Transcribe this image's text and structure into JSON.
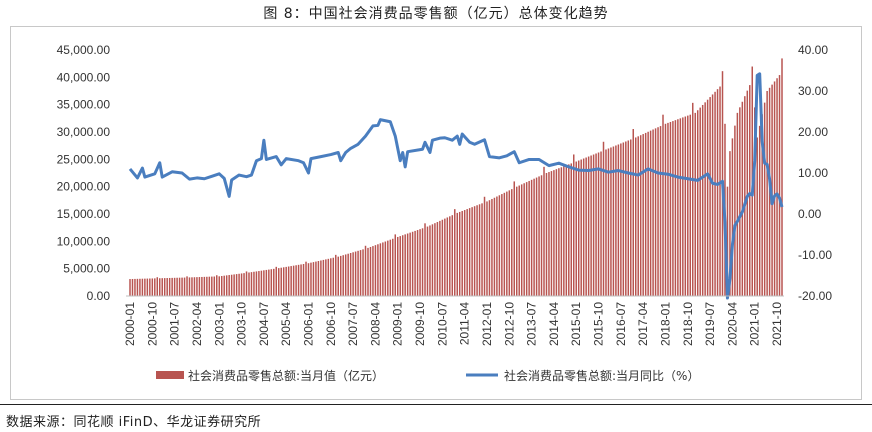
{
  "title": "图 8：中国社会消费品零售额（亿元）总体变化趋势",
  "source": "数据来源：同花顺 iFinD、华龙证券研究所",
  "chart_data": {
    "type": "bar",
    "title": "图 8：中国社会消费品零售额（亿元）总体变化趋势",
    "x_tick_labels": [
      "2000-01",
      "2000-10",
      "2001-07",
      "2002-04",
      "2003-01",
      "2003-10",
      "2004-07",
      "2005-04",
      "2006-01",
      "2006-10",
      "2007-07",
      "2008-04",
      "2009-01",
      "2009-10",
      "2010-07",
      "2011-04",
      "2012-01",
      "2012-10",
      "2013-07",
      "2014-04",
      "2015-01",
      "2015-10",
      "2016-07",
      "2017-04",
      "2018-01",
      "2018-10",
      "2019-07",
      "2020-04",
      "2021-01",
      "2021-10"
    ],
    "y_left_ticks": [
      "45,000.00",
      "40,000.00",
      "35,000.00",
      "30,000.00",
      "25,000.00",
      "20,000.00",
      "15,000.00",
      "10,000.00",
      "5,000.00",
      "0.00"
    ],
    "y_left_range": [
      0,
      45000
    ],
    "y_right_ticks": [
      "40.00",
      "30.00",
      "20.00",
      "10.00",
      "0.00",
      "-10.00",
      "-20.00"
    ],
    "y_right_range": [
      -20,
      40
    ],
    "colors": {
      "bar": "#b85450",
      "line": "#4a7ebf"
    },
    "series": [
      {
        "name": "社会消费品零售总额:当月值（亿元）",
        "type": "bar",
        "axis": "left",
        "anchors": [
          [
            "2000-01",
            3100
          ],
          [
            "2002-01",
            3400
          ],
          [
            "2003-01",
            3600
          ],
          [
            "2004-01",
            4300
          ],
          [
            "2005-01",
            5100
          ],
          [
            "2006-01",
            6000
          ],
          [
            "2007-01",
            7200
          ],
          [
            "2008-01",
            8800
          ],
          [
            "2009-01",
            10800
          ],
          [
            "2010-01",
            12700
          ],
          [
            "2011-01",
            15200
          ],
          [
            "2012-01",
            17300
          ],
          [
            "2013-01",
            20000
          ],
          [
            "2014-01",
            22500
          ],
          [
            "2015-01",
            24600
          ],
          [
            "2016-01",
            26800
          ],
          [
            "2017-01",
            29000
          ],
          [
            "2018-01",
            31500
          ],
          [
            "2019-01",
            33500
          ],
          [
            "2019-12",
            38800
          ],
          [
            "2020-01",
            31500
          ],
          [
            "2020-02",
            20000
          ],
          [
            "2020-03",
            26500
          ],
          [
            "2020-06",
            33500
          ],
          [
            "2020-12",
            39600
          ],
          [
            "2021-01",
            34500
          ],
          [
            "2021-02",
            29000
          ],
          [
            "2021-06",
            37500
          ],
          [
            "2021-12",
            41000
          ]
        ]
      },
      {
        "name": "社会消费品零售总额:当月同比（%）",
        "type": "line",
        "axis": "right",
        "points": [
          [
            "2000-01",
            11.0
          ],
          [
            "2000-04",
            8.8
          ],
          [
            "2000-06",
            11.2
          ],
          [
            "2000-07",
            9.0
          ],
          [
            "2000-11",
            9.8
          ],
          [
            "2001-01",
            12.5
          ],
          [
            "2001-02",
            9.0
          ],
          [
            "2001-06",
            10.3
          ],
          [
            "2001-10",
            10.0
          ],
          [
            "2002-01",
            8.5
          ],
          [
            "2002-04",
            8.8
          ],
          [
            "2002-07",
            8.6
          ],
          [
            "2002-10",
            9.2
          ],
          [
            "2003-01",
            9.8
          ],
          [
            "2003-03",
            8.7
          ],
          [
            "2003-05",
            4.3
          ],
          [
            "2003-06",
            8.3
          ],
          [
            "2003-09",
            9.5
          ],
          [
            "2003-12",
            9.1
          ],
          [
            "2004-02",
            9.5
          ],
          [
            "2004-04",
            13.0
          ],
          [
            "2004-06",
            13.5
          ],
          [
            "2004-07",
            18.0
          ],
          [
            "2004-08",
            13.3
          ],
          [
            "2004-12",
            14.0
          ],
          [
            "2005-02",
            12.0
          ],
          [
            "2005-04",
            13.5
          ],
          [
            "2005-09",
            13.0
          ],
          [
            "2005-11",
            12.5
          ],
          [
            "2006-01",
            10.0
          ],
          [
            "2006-02",
            13.5
          ],
          [
            "2006-06",
            14.0
          ],
          [
            "2006-10",
            14.5
          ],
          [
            "2007-01",
            15.0
          ],
          [
            "2007-02",
            13.0
          ],
          [
            "2007-04",
            15.0
          ],
          [
            "2007-06",
            16.0
          ],
          [
            "2007-09",
            17.0
          ],
          [
            "2007-12",
            19.0
          ],
          [
            "2008-03",
            21.5
          ],
          [
            "2008-05",
            21.6
          ],
          [
            "2008-06",
            23.0
          ],
          [
            "2008-10",
            22.5
          ],
          [
            "2008-12",
            19.0
          ],
          [
            "2009-02",
            13.0
          ],
          [
            "2009-03",
            15.0
          ],
          [
            "2009-04",
            11.5
          ],
          [
            "2009-05",
            15.2
          ],
          [
            "2009-11",
            15.8
          ],
          [
            "2009-12",
            17.5
          ],
          [
            "2010-02",
            15.0
          ],
          [
            "2010-03",
            18.0
          ],
          [
            "2010-06",
            18.5
          ],
          [
            "2010-08",
            18.6
          ],
          [
            "2010-11",
            18.0
          ],
          [
            "2011-01",
            19.0
          ],
          [
            "2011-02",
            17.0
          ],
          [
            "2011-03",
            19.5
          ],
          [
            "2011-06",
            17.5
          ],
          [
            "2011-08",
            17.0
          ],
          [
            "2011-12",
            18.1
          ],
          [
            "2012-02",
            14.0
          ],
          [
            "2012-06",
            13.7
          ],
          [
            "2012-09",
            14.2
          ],
          [
            "2012-12",
            15.2
          ],
          [
            "2013-02",
            12.5
          ],
          [
            "2013-06",
            13.3
          ],
          [
            "2013-10",
            13.3
          ],
          [
            "2014-02",
            11.8
          ],
          [
            "2014-06",
            12.4
          ],
          [
            "2014-10",
            11.5
          ],
          [
            "2015-02",
            10.7
          ],
          [
            "2015-06",
            10.6
          ],
          [
            "2015-10",
            11.0
          ],
          [
            "2016-02",
            10.2
          ],
          [
            "2016-06",
            10.6
          ],
          [
            "2016-10",
            10.0
          ],
          [
            "2017-02",
            9.5
          ],
          [
            "2017-06",
            11.0
          ],
          [
            "2017-10",
            10.0
          ],
          [
            "2018-02",
            9.7
          ],
          [
            "2018-06",
            9.0
          ],
          [
            "2018-10",
            8.6
          ],
          [
            "2019-02",
            8.2
          ],
          [
            "2019-06",
            9.8
          ],
          [
            "2019-08",
            7.5
          ],
          [
            "2019-10",
            7.2
          ],
          [
            "2019-12",
            8.0
          ],
          [
            "2020-01",
            -2.0
          ],
          [
            "2020-02",
            -20.5
          ],
          [
            "2020-03",
            -15.8
          ],
          [
            "2020-04",
            -7.5
          ],
          [
            "2020-05",
            -2.8
          ],
          [
            "2020-06",
            -1.8
          ],
          [
            "2020-08",
            0.5
          ],
          [
            "2020-10",
            4.3
          ],
          [
            "2020-11",
            5.0
          ],
          [
            "2020-12",
            4.6
          ],
          [
            "2021-01",
            13.0
          ],
          [
            "2021-02",
            33.8
          ],
          [
            "2021-03",
            34.2
          ],
          [
            "2021-04",
            17.7
          ],
          [
            "2021-05",
            12.4
          ],
          [
            "2021-06",
            12.1
          ],
          [
            "2021-07",
            8.5
          ],
          [
            "2021-08",
            2.5
          ],
          [
            "2021-09",
            4.4
          ],
          [
            "2021-10",
            4.9
          ],
          [
            "2021-11",
            3.9
          ],
          [
            "2021-12",
            1.7
          ]
        ]
      }
    ]
  }
}
